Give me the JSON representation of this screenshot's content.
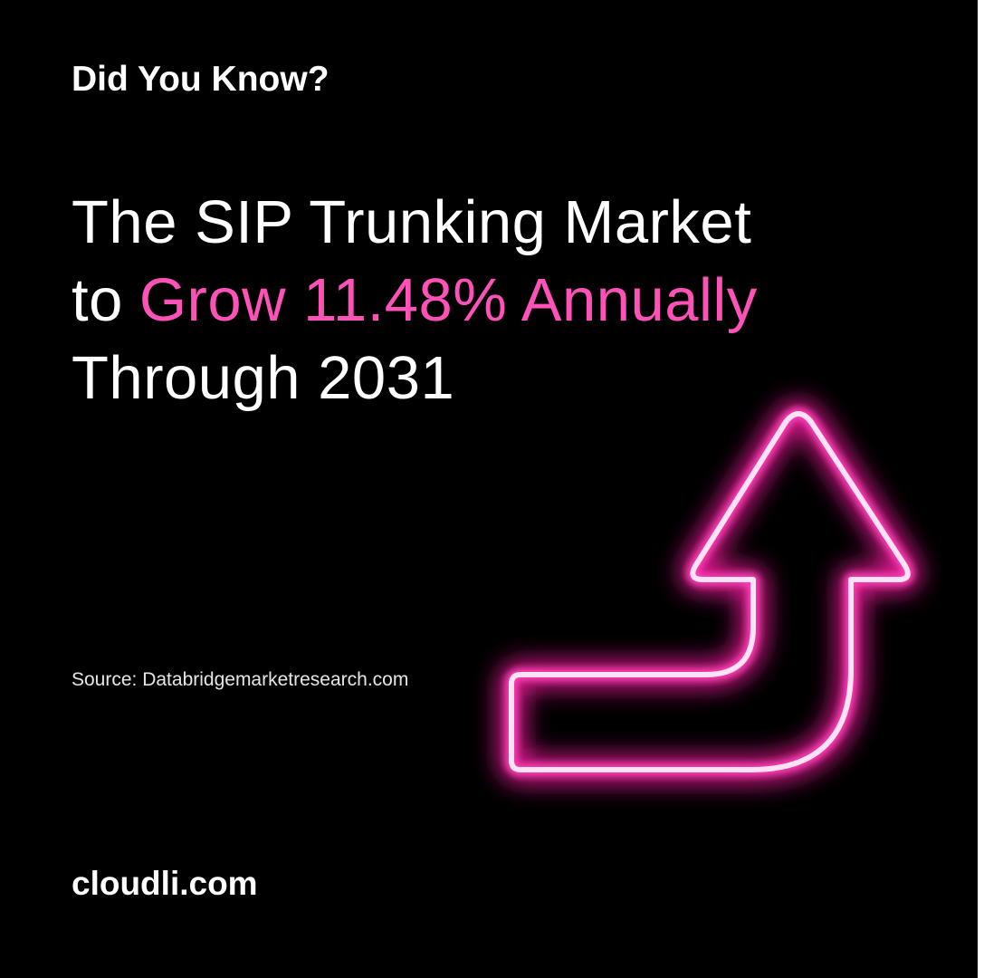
{
  "header": {
    "title": "Did You Know?"
  },
  "headline": {
    "line1": "The SIP Trunking Market",
    "line2_prefix": "to",
    "line2_highlight": "Grow 11.48% Annually",
    "line3": "Through 2031"
  },
  "source": "Source: Databridgemarketresearch.com",
  "footer": {
    "website": "cloudli.com"
  }
}
